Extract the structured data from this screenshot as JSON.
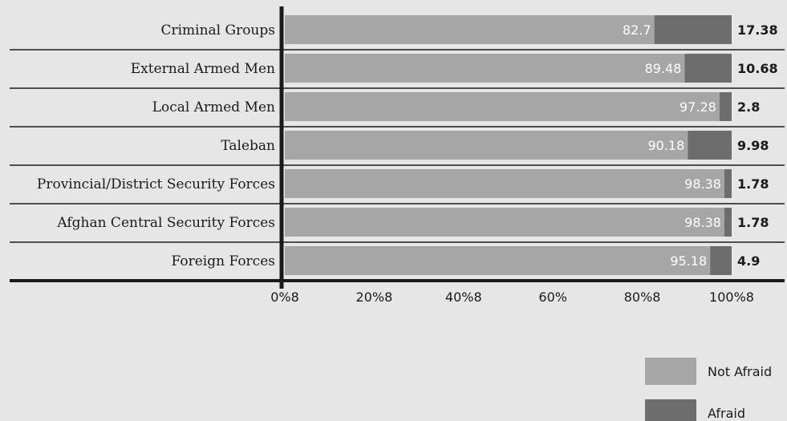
{
  "chart_data": {
    "type": "bar",
    "orientation": "horizontal",
    "stacked": true,
    "categories": [
      "Criminal Groups",
      "External Armed Men",
      "Local Armed Men",
      "Taleban",
      "Provincial/District Security Forces",
      "Afghan Central Security Forces",
      "Foreign Forces"
    ],
    "series": [
      {
        "name": "Not Afraid",
        "color": "#a6a6a6",
        "values": [
          82.7,
          89.48,
          97.28,
          90.18,
          98.38,
          98.38,
          95.18
        ],
        "labels": [
          "82.7",
          "89.48",
          "97.28",
          "90.18",
          "98.38",
          "98.38",
          "95.18"
        ]
      },
      {
        "name": "Afraid",
        "color": "#6d6d6d",
        "values": [
          17.38,
          10.68,
          2.8,
          9.98,
          1.78,
          1.78,
          4.9
        ],
        "labels": [
          "17.38",
          "10.68",
          "2.8",
          "9.98",
          "1.78",
          "1.78",
          "4.9"
        ]
      }
    ],
    "x_tick_values": [
      0,
      20,
      40,
      60,
      80,
      100
    ],
    "x_tick_labels": [
      "0%8",
      "20%8",
      "40%8",
      "60%",
      "80%8",
      "100%8"
    ],
    "xlim": [
      0,
      100
    ],
    "title": "",
    "xlabel": "",
    "ylabel": "",
    "grid": false,
    "legend_position": "bottom-right"
  }
}
